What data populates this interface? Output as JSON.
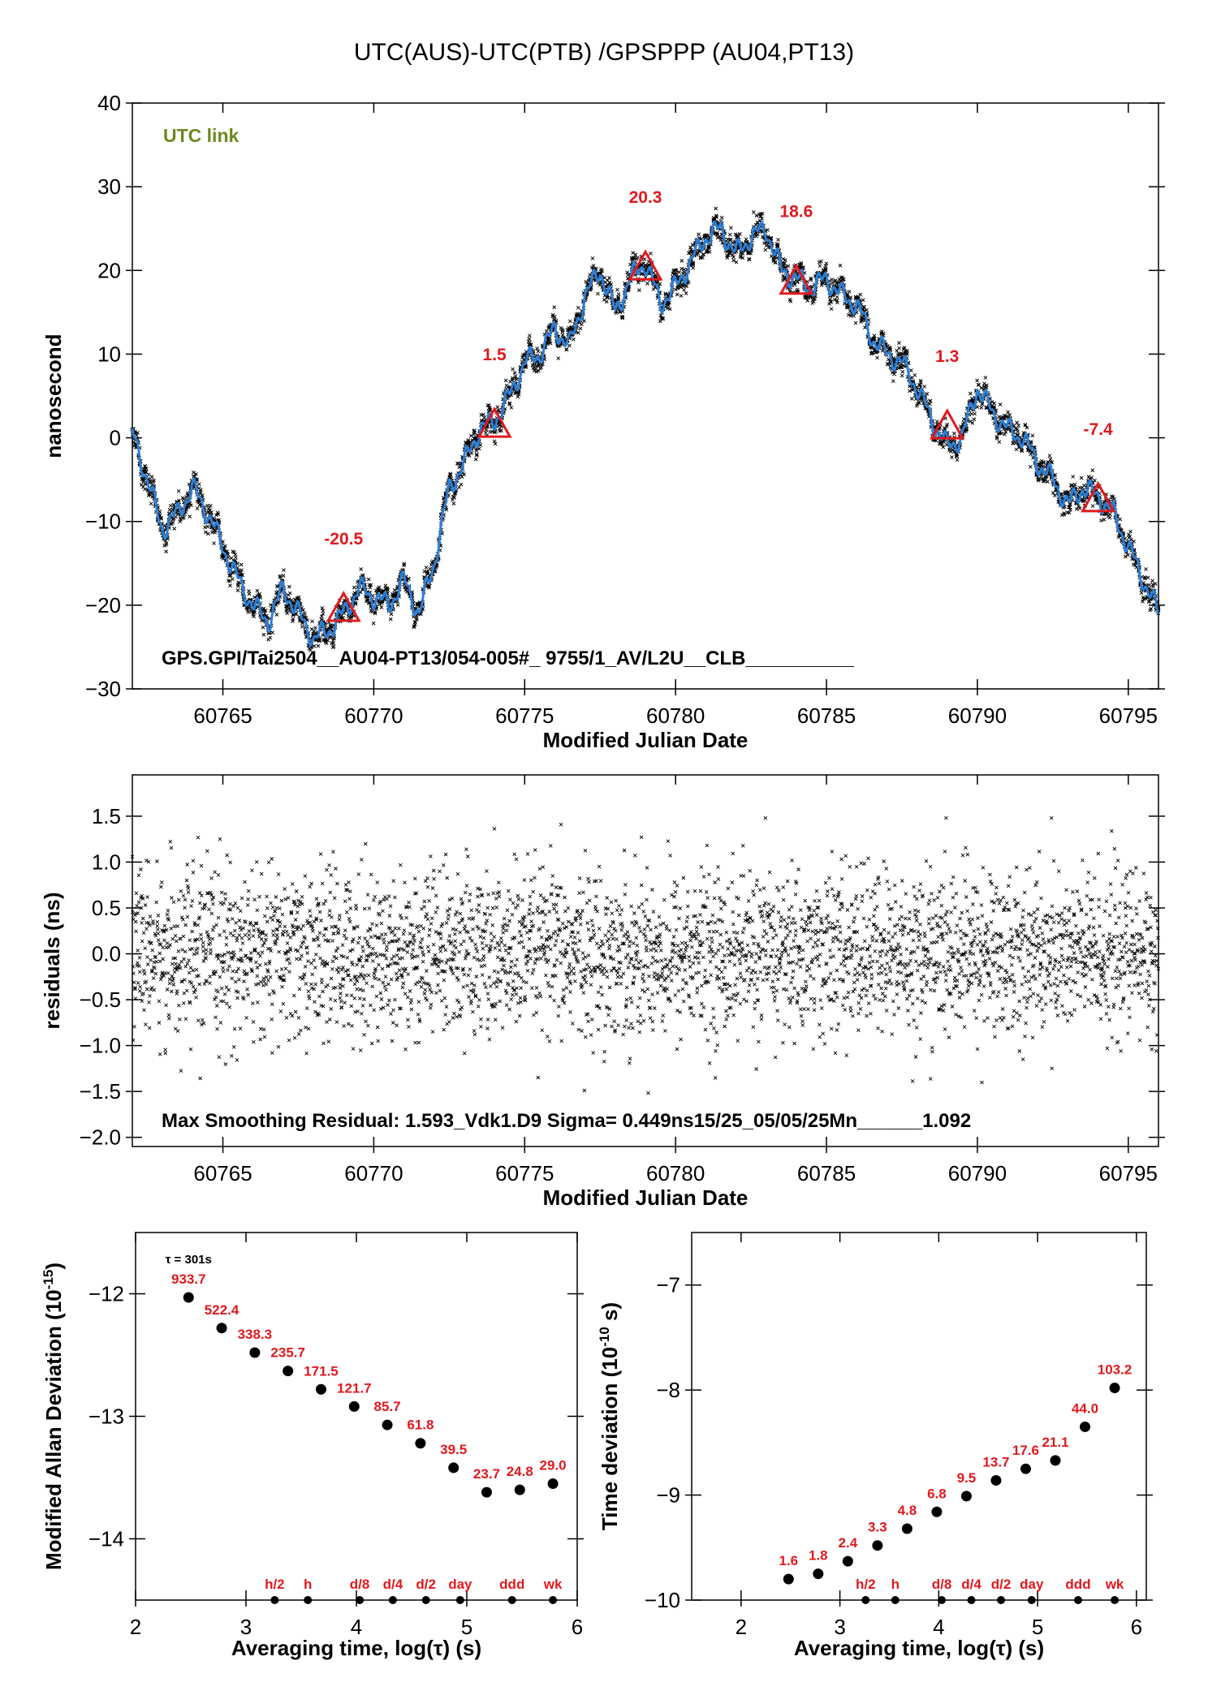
{
  "page_title": "UTC(AUS)-UTC(PTB)  /GPSPPP  (AU04,PT13)",
  "colors": {
    "fit_line": "#2d7fd6",
    "data_points": "#000000",
    "labels": "#e0191e",
    "link_label": "#6a8a1e"
  },
  "chart_data": [
    {
      "id": "main",
      "type": "line",
      "link_label": "UTC link",
      "xlabel": "Modified Julian Date",
      "ylabel": "nanosecond",
      "xlim": [
        60762,
        60796
      ],
      "ylim": [
        -30,
        40
      ],
      "xticks": [
        60765,
        60770,
        60775,
        60780,
        60785,
        60790,
        60795
      ],
      "yticks": [
        -30,
        -20,
        -10,
        0,
        10,
        20,
        30,
        40
      ],
      "footer_text": "GPS.GPI/Tai2504__AU04-PT13/054-005#_  9755/1_AV/L2U__CLB__________",
      "series": [
        {
          "x": [
            60762,
            60762.5,
            60763,
            60763.5,
            60764,
            60764.5,
            60765,
            60765.5,
            60766,
            60766.5,
            60767,
            60767.5,
            60768,
            60768.5,
            60769,
            60769.5,
            60770,
            60770.5,
            60771,
            60771.5,
            60772,
            60772.5,
            60773,
            60773.5,
            60774,
            60774.5,
            60775,
            60775.5,
            60776,
            60776.5,
            60777,
            60777.5,
            60778,
            60778.5,
            60779,
            60779.5,
            60780,
            60780.5,
            60781,
            60781.5,
            60782,
            60782.5,
            60783,
            60783.5,
            60784,
            60784.5,
            60785,
            60785.5,
            60786,
            60786.5,
            60787,
            60787.5,
            60788,
            60788.5,
            60789,
            60789.5,
            60790,
            60790.5,
            60791,
            60791.5,
            60792,
            60792.5,
            60793,
            60793.5,
            60794,
            60794.5,
            60795,
            60795.5,
            60796
          ],
          "y": [
            0.5,
            -5,
            -11,
            -9,
            -6,
            -9,
            -13,
            -17,
            -20,
            -22,
            -18,
            -21,
            -24,
            -23,
            -21,
            -18,
            -19,
            -20,
            -17,
            -21,
            -15,
            -6,
            -3,
            1,
            2,
            5,
            9,
            10,
            13,
            11,
            17,
            20,
            15,
            19,
            21,
            16,
            18,
            21,
            24,
            25,
            22,
            24,
            25,
            20,
            19,
            18,
            19,
            17,
            16,
            12,
            10,
            9,
            6,
            2,
            -1,
            0,
            6,
            3,
            1,
            0,
            -3,
            -5,
            -8,
            -6,
            -7,
            -9,
            -13,
            -17,
            -21
          ]
        }
      ],
      "annotations": [
        {
          "x": 60769,
          "y": -20.5,
          "label": "-20.5"
        },
        {
          "x": 60774,
          "y": 1.5,
          "label": "1.5"
        },
        {
          "x": 60779,
          "y": 20.3,
          "label": "20.3"
        },
        {
          "x": 60784,
          "y": 18.6,
          "label": "18.6"
        },
        {
          "x": 60789,
          "y": 1.3,
          "label": "1.3"
        },
        {
          "x": 60794,
          "y": -7.4,
          "label": "-7.4"
        }
      ]
    },
    {
      "id": "residuals",
      "type": "scatter",
      "xlabel": "Modified Julian Date",
      "ylabel": "residuals (ns)",
      "xlim": [
        60762,
        60796
      ],
      "ylim": [
        -2.1,
        1.95
      ],
      "xticks": [
        60765,
        60770,
        60775,
        60780,
        60785,
        60790,
        60795
      ],
      "yticks": [
        -2.0,
        -1.5,
        -1.0,
        -0.5,
        0.0,
        0.5,
        1.0,
        1.5
      ],
      "ytick_labels": [
        "−2.0",
        "−1.5",
        "−1.0",
        "−0.5",
        "0.0",
        "0.5",
        "1.0",
        "1.5"
      ],
      "sigma": 0.449,
      "max_residual": 1.593,
      "footer_text": "Max Smoothing Residual: 1.593_Vdk1.D9  Sigma= 0.449ns15/25_05/05/25Mn______1.092"
    },
    {
      "id": "mdev",
      "type": "scatter",
      "xlabel": "Averaging time, log(τ) (s)",
      "ylabel": "Modified Allan Deviation (10",
      "ylabel_sup": "-15",
      "ylabel_end": ")",
      "xlim": [
        2,
        6
      ],
      "ylim": [
        -14.5,
        -11.5
      ],
      "xticks": [
        2,
        3,
        4,
        5,
        6
      ],
      "yticks": [
        -14,
        -13,
        -12
      ],
      "tau_note": "τ = 301s",
      "points": [
        {
          "x": 2.48,
          "y": -12.03,
          "label": "933.7"
        },
        {
          "x": 2.78,
          "y": -12.28,
          "label": "522.4"
        },
        {
          "x": 3.08,
          "y": -12.48,
          "label": "338.3"
        },
        {
          "x": 3.38,
          "y": -12.63,
          "label": "235.7"
        },
        {
          "x": 3.68,
          "y": -12.78,
          "label": "171.5"
        },
        {
          "x": 3.98,
          "y": -12.92,
          "label": "121.7"
        },
        {
          "x": 4.28,
          "y": -13.07,
          "label": "85.7"
        },
        {
          "x": 4.58,
          "y": -13.22,
          "label": "61.8"
        },
        {
          "x": 4.88,
          "y": -13.42,
          "label": "39.5"
        },
        {
          "x": 5.18,
          "y": -13.62,
          "label": "23.7"
        },
        {
          "x": 5.48,
          "y": -13.6,
          "label": "24.8"
        },
        {
          "x": 5.78,
          "y": -13.55,
          "label": "29.0"
        }
      ],
      "time_markers": [
        {
          "x": 3.26,
          "label": "h/2"
        },
        {
          "x": 3.56,
          "label": "h"
        },
        {
          "x": 4.03,
          "label": "d/8"
        },
        {
          "x": 4.33,
          "label": "d/4"
        },
        {
          "x": 4.63,
          "label": "d/2"
        },
        {
          "x": 4.94,
          "label": "day"
        },
        {
          "x": 5.41,
          "label": "ddd"
        },
        {
          "x": 5.78,
          "label": "wk"
        }
      ]
    },
    {
      "id": "tdev",
      "type": "scatter",
      "xlabel": "Averaging time, log(τ) (s)",
      "ylabel": "Time deviation (10",
      "ylabel_sup": "-10",
      "ylabel_end": " s)",
      "xlim": [
        1.5,
        6.1
      ],
      "ylim": [
        -10,
        -6.5
      ],
      "xticks": [
        2,
        3,
        4,
        5,
        6
      ],
      "yticks": [
        -10,
        -9,
        -8,
        -7
      ],
      "points": [
        {
          "x": 2.48,
          "y": -9.8,
          "label": "1.6"
        },
        {
          "x": 2.78,
          "y": -9.75,
          "label": "1.8"
        },
        {
          "x": 3.08,
          "y": -9.63,
          "label": "2.4"
        },
        {
          "x": 3.38,
          "y": -9.48,
          "label": "3.3"
        },
        {
          "x": 3.68,
          "y": -9.32,
          "label": "4.8"
        },
        {
          "x": 3.98,
          "y": -9.16,
          "label": "6.8"
        },
        {
          "x": 4.28,
          "y": -9.01,
          "label": "9.5"
        },
        {
          "x": 4.58,
          "y": -8.86,
          "label": "13.7"
        },
        {
          "x": 4.88,
          "y": -8.75,
          "label": "17.6"
        },
        {
          "x": 5.18,
          "y": -8.67,
          "label": "21.1"
        },
        {
          "x": 5.48,
          "y": -8.35,
          "label": "44.0"
        },
        {
          "x": 5.78,
          "y": -7.98,
          "label": "103.2"
        }
      ],
      "time_markers": [
        {
          "x": 3.26,
          "label": "h/2"
        },
        {
          "x": 3.56,
          "label": "h"
        },
        {
          "x": 4.03,
          "label": "d/8"
        },
        {
          "x": 4.33,
          "label": "d/4"
        },
        {
          "x": 4.63,
          "label": "d/2"
        },
        {
          "x": 4.94,
          "label": "day"
        },
        {
          "x": 5.41,
          "label": "ddd"
        },
        {
          "x": 5.78,
          "label": "wk"
        }
      ]
    }
  ]
}
